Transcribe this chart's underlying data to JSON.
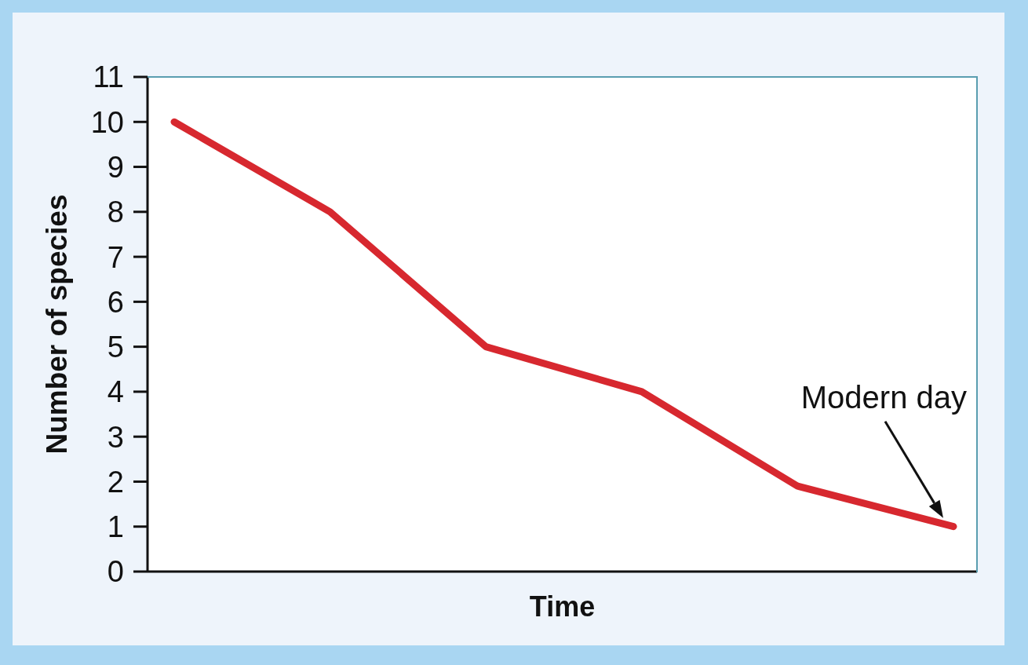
{
  "chart_data": {
    "type": "line",
    "xlabel": "Time",
    "ylabel": "Number of species",
    "categories": [
      null,
      null,
      null,
      null,
      null,
      null
    ],
    "values": [
      10,
      8,
      5,
      4,
      1.9,
      1
    ],
    "color": "#d7282f",
    "ylim": [
      0,
      11
    ],
    "yticks": [
      0,
      1,
      2,
      3,
      4,
      5,
      6,
      7,
      8,
      9,
      10,
      11
    ],
    "marker": "none",
    "line_style": "solid",
    "annotations": [
      "Modern day"
    ]
  }
}
